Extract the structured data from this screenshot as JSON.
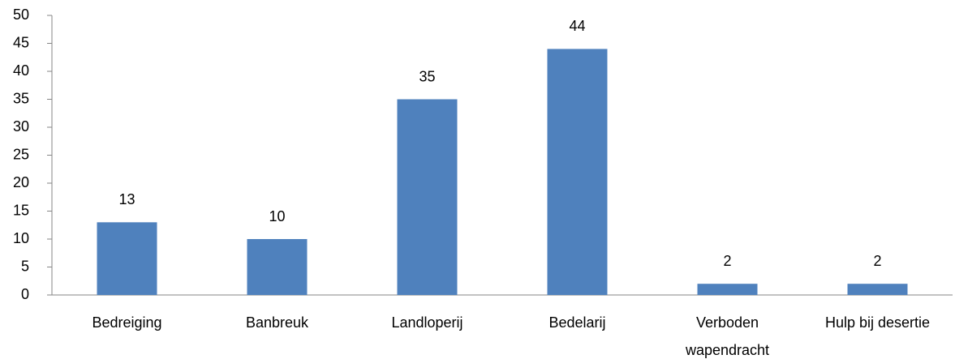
{
  "chart_data": {
    "type": "bar",
    "categories": [
      "Bedreiging",
      "Banbreuk",
      "Landloperij",
      "Bedelarij",
      "Verboden wapendracht",
      "Hulp bij desertie"
    ],
    "values": [
      13,
      10,
      35,
      44,
      2,
      2
    ],
    "color": "#4f81bd",
    "ylim": [
      0,
      50
    ],
    "yticks": [
      0,
      5,
      10,
      15,
      20,
      25,
      30,
      35,
      40,
      45,
      50
    ],
    "grid": false
  }
}
